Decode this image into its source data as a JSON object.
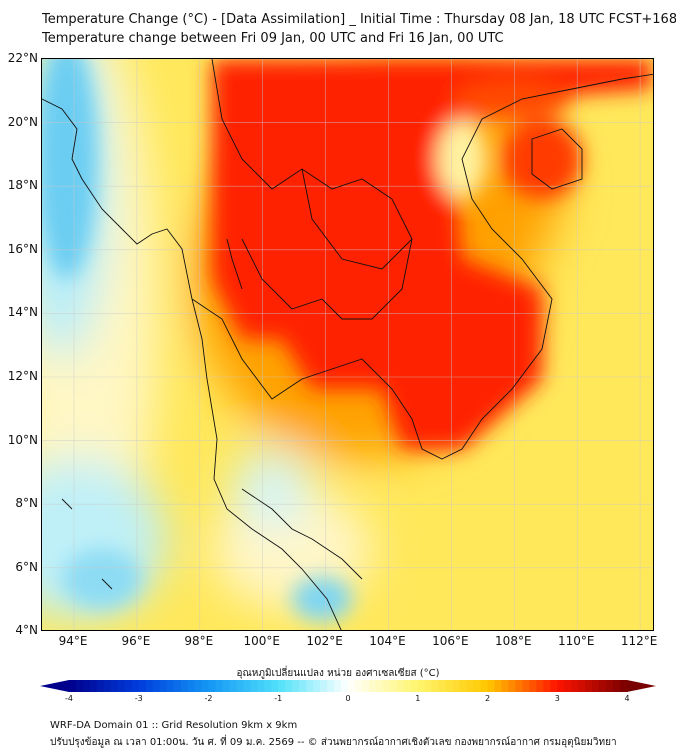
{
  "header": {
    "title_line1": "Temperature Change (°C) - [Data Assimilation] _ Initial Time : Thursday 08 Jan, 18 UTC FCST+168",
    "title_line2": "Temperature change between Fri 09 Jan, 00 UTC and Fri 16 Jan, 00 UTC"
  },
  "map": {
    "lat_labels": [
      "22°N",
      "20°N",
      "18°N",
      "16°N",
      "14°N",
      "12°N",
      "10°N",
      "8°N",
      "6°N",
      "4°N"
    ],
    "lon_labels": [
      "94°E",
      "96°E",
      "98°E",
      "100°E",
      "102°E",
      "104°E",
      "106°E",
      "108°E",
      "110°E",
      "112°E"
    ],
    "lat_range": [
      4,
      22
    ],
    "lon_range": [
      93,
      112.5
    ],
    "colors": {
      "warm_max": "#ff1a00",
      "warm": "#ff9a00",
      "mild": "#ffe34a",
      "neutral": "#fffad0",
      "cool": "#9ae8f5",
      "cold": "#3cb8f0"
    }
  },
  "colorbar": {
    "label": "อุณหภูมิเปลี่ยนแปลง หน่วย องศาเซลเซียส (°C)",
    "ticks": [
      "-4",
      "-3",
      "-2",
      "-1",
      "0",
      "1",
      "2",
      "3",
      "4"
    ],
    "range": [
      -4,
      4
    ]
  },
  "footer": {
    "line1": "WRF-DA Domain 01 :: Grid Resolution 9km x 9km",
    "line2": "ปรับปรุงข้อมูล ณ เวลา 01:00น. วัน ศ. ที่ 09 ม.ค. 2569 -- © ส่วนพยากรณ์อากาศเชิงตัวเลข กองพยากรณ์อากาศ กรมอุตุนิยมวิทยา"
  }
}
